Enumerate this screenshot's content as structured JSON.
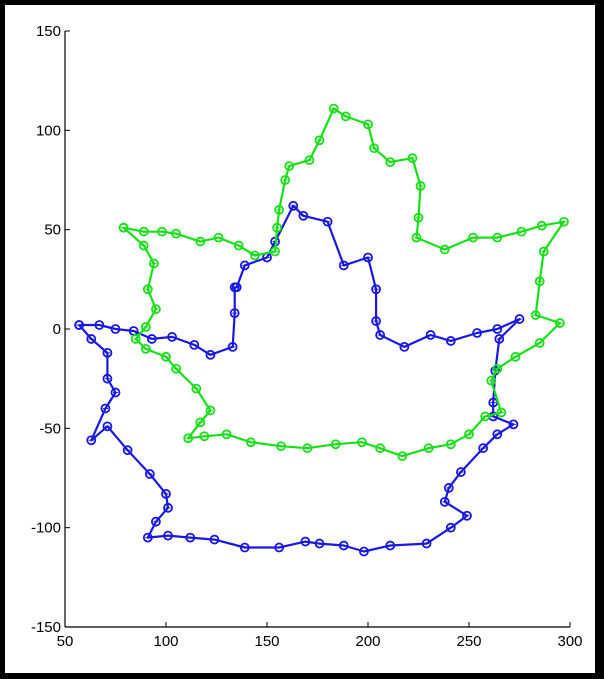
{
  "chart_data": {
    "type": "line",
    "xlim": [
      50,
      300
    ],
    "ylim": [
      -150,
      150
    ],
    "x_ticks": [
      "50",
      "100",
      "150",
      "200",
      "250",
      "300"
    ],
    "y_ticks": [
      "150",
      "100",
      "50",
      "0",
      "-50",
      "-100",
      "-150"
    ],
    "grid": false,
    "marker": "circle",
    "series": [
      {
        "color": "#1818e0",
        "points": [
          [
            57,
            2
          ],
          [
            67,
            2
          ],
          [
            75,
            0
          ],
          [
            84,
            -1
          ],
          [
            93,
            -5
          ],
          [
            103,
            -4
          ],
          [
            114,
            -8
          ],
          [
            122,
            -13
          ],
          [
            133,
            -9
          ],
          [
            134,
            8
          ],
          [
            134,
            21
          ],
          [
            135,
            21
          ],
          [
            139,
            32
          ],
          [
            150,
            36
          ],
          [
            154,
            44
          ],
          [
            163,
            62
          ],
          [
            168,
            57
          ],
          [
            180,
            54
          ],
          [
            188,
            32
          ],
          [
            200,
            36
          ],
          [
            204,
            20
          ],
          [
            204,
            4
          ],
          [
            206,
            -3
          ],
          [
            218,
            -9
          ],
          [
            231,
            -3
          ],
          [
            241,
            -6
          ],
          [
            254,
            -2
          ],
          [
            264,
            0
          ],
          [
            275,
            5
          ],
          [
            265,
            -5
          ],
          [
            263,
            -21
          ],
          [
            262,
            -37
          ],
          [
            262,
            -44
          ],
          [
            272,
            -48
          ],
          [
            264,
            -53
          ],
          [
            257,
            -60
          ],
          [
            246,
            -72
          ],
          [
            240,
            -80
          ],
          [
            238,
            -87
          ],
          [
            249,
            -94
          ],
          [
            241,
            -100
          ],
          [
            229,
            -108
          ],
          [
            211,
            -109
          ],
          [
            198,
            -112
          ],
          [
            188,
            -109
          ],
          [
            176,
            -108
          ],
          [
            169,
            -107
          ],
          [
            156,
            -110
          ],
          [
            139,
            -110
          ],
          [
            124,
            -106
          ],
          [
            112,
            -105
          ],
          [
            101,
            -104
          ],
          [
            91,
            -105
          ],
          [
            95,
            -97
          ],
          [
            101,
            -90
          ],
          [
            100,
            -83
          ],
          [
            92,
            -73
          ],
          [
            81,
            -61
          ],
          [
            71,
            -49
          ],
          [
            63,
            -56
          ],
          [
            70,
            -40
          ],
          [
            75,
            -32
          ],
          [
            71,
            -25
          ],
          [
            71,
            -12
          ],
          [
            63,
            -5
          ],
          [
            57,
            2
          ]
        ]
      },
      {
        "color": "#18e018",
        "points": [
          [
            79,
            51
          ],
          [
            89,
            49
          ],
          [
            98,
            49
          ],
          [
            105,
            48
          ],
          [
            117,
            44
          ],
          [
            126,
            46
          ],
          [
            136,
            42
          ],
          [
            144,
            37
          ],
          [
            154,
            39
          ],
          [
            155,
            51
          ],
          [
            156,
            60
          ],
          [
            159,
            75
          ],
          [
            161,
            82
          ],
          [
            171,
            85
          ],
          [
            176,
            95
          ],
          [
            183,
            111
          ],
          [
            189,
            107
          ],
          [
            200,
            103
          ],
          [
            203,
            91
          ],
          [
            211,
            84
          ],
          [
            222,
            86
          ],
          [
            226,
            72
          ],
          [
            225,
            56
          ],
          [
            224,
            46
          ],
          [
            238,
            40
          ],
          [
            252,
            46
          ],
          [
            264,
            46
          ],
          [
            276,
            49
          ],
          [
            286,
            52
          ],
          [
            297,
            54
          ],
          [
            287,
            39
          ],
          [
            285,
            24
          ],
          [
            283,
            7
          ],
          [
            295,
            3
          ],
          [
            285,
            -7
          ],
          [
            273,
            -14
          ],
          [
            264,
            -20
          ],
          [
            261,
            -26
          ],
          [
            266,
            -42
          ],
          [
            258,
            -44
          ],
          [
            250,
            -53
          ],
          [
            241,
            -58
          ],
          [
            230,
            -60
          ],
          [
            217,
            -64
          ],
          [
            206,
            -60
          ],
          [
            197,
            -57
          ],
          [
            184,
            -58
          ],
          [
            170,
            -60
          ],
          [
            157,
            -59
          ],
          [
            142,
            -57
          ],
          [
            130,
            -53
          ],
          [
            119,
            -54
          ],
          [
            111,
            -55
          ],
          [
            117,
            -47
          ],
          [
            122,
            -41
          ],
          [
            115,
            -30
          ],
          [
            105,
            -20
          ],
          [
            100,
            -14
          ],
          [
            90,
            -10
          ],
          [
            85,
            -5
          ],
          [
            90,
            1
          ],
          [
            95,
            10
          ],
          [
            91,
            20
          ],
          [
            94,
            33
          ],
          [
            89,
            42
          ],
          [
            79,
            51
          ]
        ]
      }
    ]
  }
}
